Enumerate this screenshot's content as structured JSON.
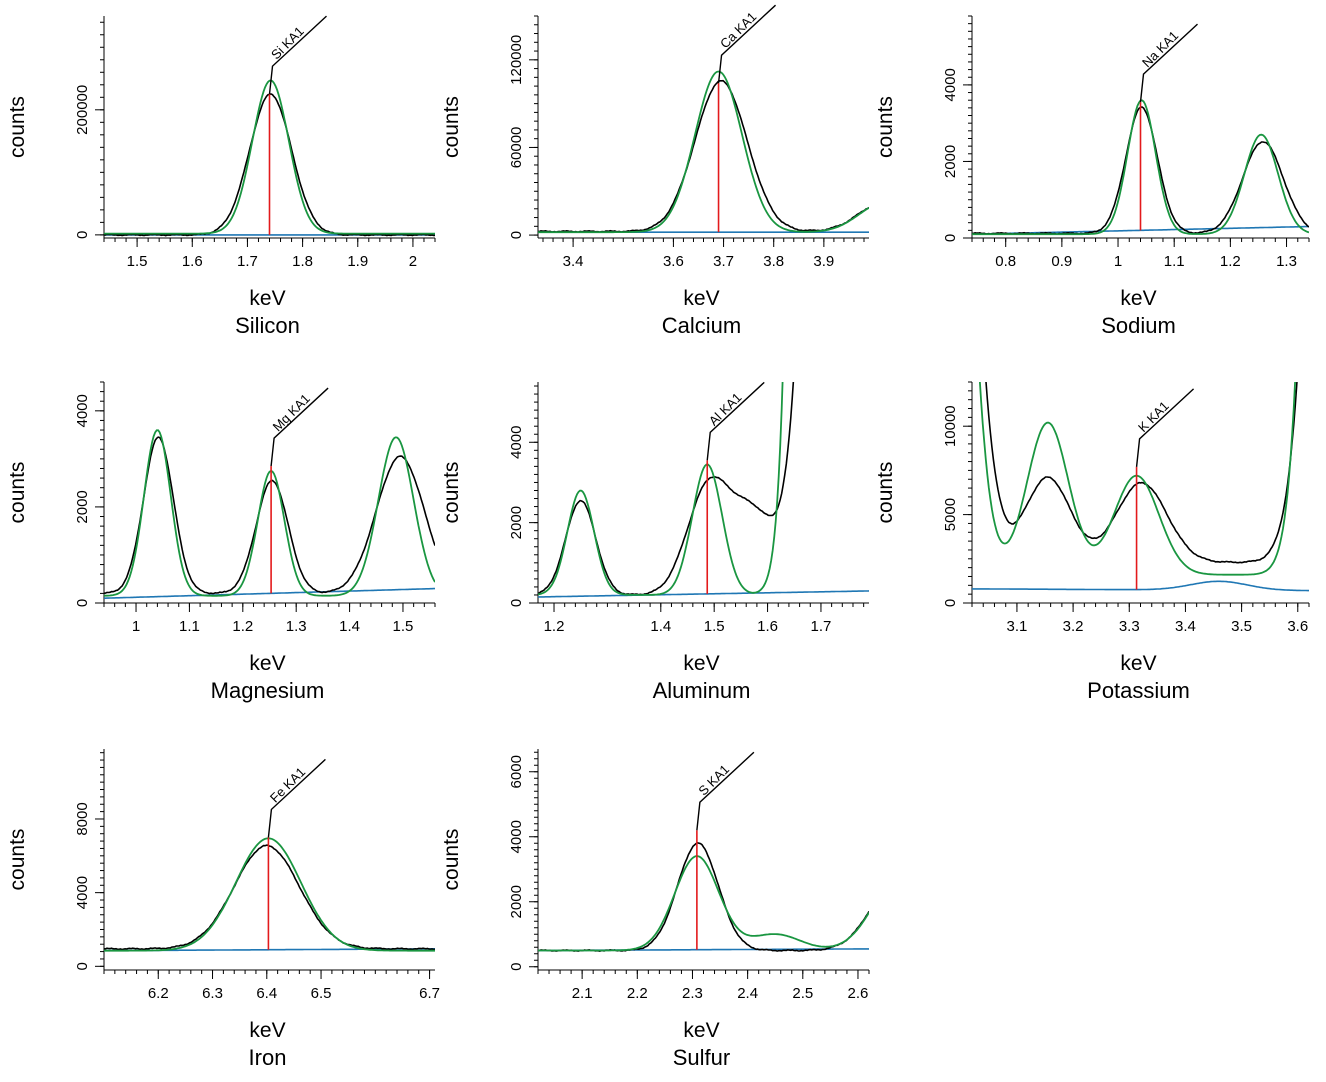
{
  "colors": {
    "measured": "#000000",
    "fit": "#1a9641",
    "background": "#1f77b4",
    "marker": "#e31a1c"
  },
  "chart_data": [
    {
      "type": "line",
      "title": "Silicon",
      "xlabel": "keV",
      "ylabel": "counts",
      "xlim": [
        1.44,
        2.04
      ],
      "ylim": [
        -5000,
        350000
      ],
      "xticks": [
        1.5,
        1.6,
        1.7,
        1.8,
        1.9,
        2.0
      ],
      "xticklabels": [
        "1.5",
        "1.6",
        "1.7",
        "1.8",
        "1.9",
        "2"
      ],
      "yticks": [
        0,
        200000
      ],
      "yticklabels": [
        "0",
        "200000"
      ],
      "marker": {
        "label": "Si KA1",
        "x": 1.74,
        "y": 225000
      },
      "peaks_measured": [
        {
          "center": 1.742,
          "height": 225000,
          "sigma": 0.038
        }
      ],
      "peaks_fit": [
        {
          "center": 1.742,
          "height": 245000,
          "sigma": 0.033
        }
      ],
      "background": {
        "y_start": 0,
        "y_end": 0,
        "bump": null
      },
      "measured_offset": 0,
      "fit_offset": 2000
    },
    {
      "type": "line",
      "title": "Calcium",
      "xlabel": "keV",
      "ylabel": "counts",
      "xlim": [
        3.33,
        3.99
      ],
      "ylim": [
        -2000,
        150000
      ],
      "xticks": [
        3.4,
        3.6,
        3.7,
        3.8,
        3.9
      ],
      "xticklabels": [
        "3.4",
        "3.6",
        "3.7",
        "3.8",
        "3.9"
      ],
      "yticks": [
        0,
        60000,
        120000
      ],
      "yticklabels": [
        "0",
        "60000",
        "120000"
      ],
      "marker": {
        "label": "Ca KA1",
        "x": 3.69,
        "y": 104000
      },
      "peaks_measured": [
        {
          "center": 3.695,
          "height": 103000,
          "sigma": 0.052
        },
        {
          "center": 4.02,
          "height": 20000,
          "sigma": 0.05
        }
      ],
      "peaks_fit": [
        {
          "center": 3.69,
          "height": 110000,
          "sigma": 0.047
        },
        {
          "center": 4.02,
          "height": 20000,
          "sigma": 0.05
        }
      ],
      "background": {
        "y_start": 2000,
        "y_end": 2000,
        "bump": null
      },
      "measured_offset": 2500,
      "fit_offset": 2000
    },
    {
      "type": "line",
      "title": "Sodium",
      "xlabel": "keV",
      "ylabel": "counts",
      "xlim": [
        0.74,
        1.34
      ],
      "ylim": [
        0,
        5800
      ],
      "xticks": [
        0.8,
        0.9,
        1.0,
        1.1,
        1.2,
        1.3
      ],
      "xticklabels": [
        "0.8",
        "0.9",
        "1",
        "1.1",
        "1.2",
        "1.3"
      ],
      "yticks": [
        0,
        2000,
        4000
      ],
      "yticklabels": [
        "0",
        "2000",
        "4000"
      ],
      "marker": {
        "label": "Na KA1",
        "x": 1.04,
        "y": 3550
      },
      "peaks_measured": [
        {
          "center": 1.042,
          "height": 3300,
          "sigma": 0.028
        },
        {
          "center": 1.258,
          "height": 2400,
          "sigma": 0.036
        }
      ],
      "peaks_fit": [
        {
          "center": 1.042,
          "height": 3500,
          "sigma": 0.025
        },
        {
          "center": 1.255,
          "height": 2600,
          "sigma": 0.03
        }
      ],
      "background": {
        "y_start": 100,
        "y_end": 300,
        "bump": null
      },
      "measured_offset": 120,
      "fit_offset": 100
    },
    {
      "type": "line",
      "title": "Magnesium",
      "xlabel": "keV",
      "ylabel": "counts",
      "xlim": [
        0.94,
        1.56
      ],
      "ylim": [
        0,
        4600
      ],
      "xticks": [
        1.0,
        1.1,
        1.2,
        1.3,
        1.4,
        1.5
      ],
      "xticklabels": [
        "1",
        "1.1",
        "1.2",
        "1.3",
        "1.4",
        "1.5"
      ],
      "yticks": [
        0,
        2000,
        4000
      ],
      "yticklabels": [
        "0",
        "2000",
        "4000"
      ],
      "marker": {
        "label": "Mg KA1",
        "x": 1.253,
        "y": 2850
      },
      "peaks_measured": [
        {
          "center": 1.042,
          "height": 3250,
          "sigma": 0.028
        },
        {
          "center": 1.255,
          "height": 2350,
          "sigma": 0.03
        },
        {
          "center": 1.495,
          "height": 2850,
          "sigma": 0.045
        }
      ],
      "peaks_fit": [
        {
          "center": 1.04,
          "height": 3450,
          "sigma": 0.025
        },
        {
          "center": 1.253,
          "height": 2600,
          "sigma": 0.025
        },
        {
          "center": 1.487,
          "height": 3300,
          "sigma": 0.033
        }
      ],
      "background": {
        "y_start": 100,
        "y_end": 300,
        "bump": null
      },
      "measured_offset": 200,
      "fit_offset": 150
    },
    {
      "type": "line",
      "title": "Aluminum",
      "xlabel": "keV",
      "ylabel": "counts",
      "xlim": [
        1.17,
        1.79
      ],
      "ylim": [
        0,
        5500
      ],
      "xticks": [
        1.2,
        1.4,
        1.5,
        1.6,
        1.7
      ],
      "xticklabels": [
        "1.2",
        "1.4",
        "1.5",
        "1.6",
        "1.7"
      ],
      "yticks": [
        0,
        2000,
        4000
      ],
      "yticklabels": [
        "0",
        "2000",
        "4000"
      ],
      "marker": {
        "label": "Al KA1",
        "x": 1.487,
        "y": 3550
      },
      "peaks_measured": [
        {
          "center": 1.25,
          "height": 2350,
          "sigma": 0.028
        },
        {
          "center": 1.49,
          "height": 2700,
          "sigma": 0.04
        },
        {
          "center": 1.575,
          "height": 1900,
          "sigma": 0.04
        },
        {
          "center": 1.76,
          "height": 60000,
          "sigma": 0.05
        }
      ],
      "peaks_fit": [
        {
          "center": 1.25,
          "height": 2600,
          "sigma": 0.025
        },
        {
          "center": 1.487,
          "height": 3250,
          "sigma": 0.028
        },
        {
          "center": 1.74,
          "height": 400000,
          "sigma": 0.038
        }
      ],
      "background": {
        "y_start": 150,
        "y_end": 300,
        "bump": null
      },
      "measured_offset": 200,
      "fit_offset": 200
    },
    {
      "type": "line",
      "title": "Potassium",
      "xlabel": "keV",
      "ylabel": "counts",
      "xlim": [
        3.02,
        3.62
      ],
      "ylim": [
        0,
        12500
      ],
      "xticks": [
        3.1,
        3.2,
        3.3,
        3.4,
        3.5,
        3.6
      ],
      "xticklabels": [
        "3.1",
        "3.2",
        "3.3",
        "3.4",
        "3.5",
        "3.6"
      ],
      "yticks": [
        0,
        5000,
        10000
      ],
      "yticklabels": [
        "0",
        "5000",
        "10000"
      ],
      "marker": {
        "label": "K KA1",
        "x": 3.313,
        "y": 7700
      },
      "peaks_measured": [
        {
          "center": 2.96,
          "height": 60000,
          "sigma": 0.045
        },
        {
          "center": 3.155,
          "height": 4800,
          "sigma": 0.04
        },
        {
          "center": 3.322,
          "height": 4500,
          "sigma": 0.045
        },
        {
          "center": 3.69,
          "height": 80000,
          "sigma": 0.045
        }
      ],
      "peaks_fit": [
        {
          "center": 2.96,
          "height": 60000,
          "sigma": 0.04
        },
        {
          "center": 3.155,
          "height": 8600,
          "sigma": 0.037
        },
        {
          "center": 3.313,
          "height": 5600,
          "sigma": 0.04
        },
        {
          "center": 3.69,
          "height": 180000,
          "sigma": 0.04
        }
      ],
      "background": {
        "y_start": 800,
        "y_end": 700,
        "bump": {
          "center": 3.46,
          "height": 500,
          "sigma": 0.05
        }
      },
      "measured_offset": 2300,
      "fit_offset": 1600
    },
    {
      "type": "line",
      "title": "Iron",
      "xlabel": "keV",
      "ylabel": "counts",
      "xlim": [
        6.1,
        6.71
      ],
      "ylim": [
        -200,
        11800
      ],
      "xticks": [
        6.2,
        6.3,
        6.4,
        6.5,
        6.7
      ],
      "xticklabels": [
        "6.2",
        "6.3",
        "6.4",
        "6.5",
        "6.7"
      ],
      "yticks": [
        0,
        4000,
        8000
      ],
      "yticklabels": [
        "0",
        "4000",
        "8000"
      ],
      "marker": {
        "label": "Fe KA1",
        "x": 6.403,
        "y": 7000
      },
      "peaks_measured": [
        {
          "center": 6.4,
          "height": 5600,
          "sigma": 0.06
        }
      ],
      "peaks_fit": [
        {
          "center": 6.403,
          "height": 6100,
          "sigma": 0.06
        }
      ],
      "background": {
        "y_start": 850,
        "y_end": 950,
        "bump": null
      },
      "measured_offset": 950,
      "fit_offset": 850
    },
    {
      "type": "line",
      "title": "Sulfur",
      "xlabel": "keV",
      "ylabel": "counts",
      "xlim": [
        2.02,
        2.62
      ],
      "ylim": [
        -100,
        6700
      ],
      "xticks": [
        2.1,
        2.2,
        2.3,
        2.4,
        2.5,
        2.6
      ],
      "xticklabels": [
        "2.1",
        "2.2",
        "2.3",
        "2.4",
        "2.5",
        "2.6"
      ],
      "yticks": [
        0,
        2000,
        4000,
        6000
      ],
      "yticklabels": [
        "0",
        "2000",
        "4000",
        "6000"
      ],
      "marker": {
        "label": "S KA1",
        "x": 2.308,
        "y": 4200
      },
      "peaks_measured": [
        {
          "center": 2.31,
          "height": 3300,
          "sigma": 0.037
        },
        {
          "center": 2.68,
          "height": 2500,
          "sigma": 0.05
        }
      ],
      "peaks_fit": [
        {
          "center": 2.308,
          "height": 2900,
          "sigma": 0.04
        },
        {
          "center": 2.45,
          "height": 500,
          "sigma": 0.045
        },
        {
          "center": 2.68,
          "height": 2400,
          "sigma": 0.05
        }
      ],
      "background": {
        "y_start": 500,
        "y_end": 550,
        "bump": null
      },
      "measured_offset": 500,
      "fit_offset": 500
    }
  ]
}
